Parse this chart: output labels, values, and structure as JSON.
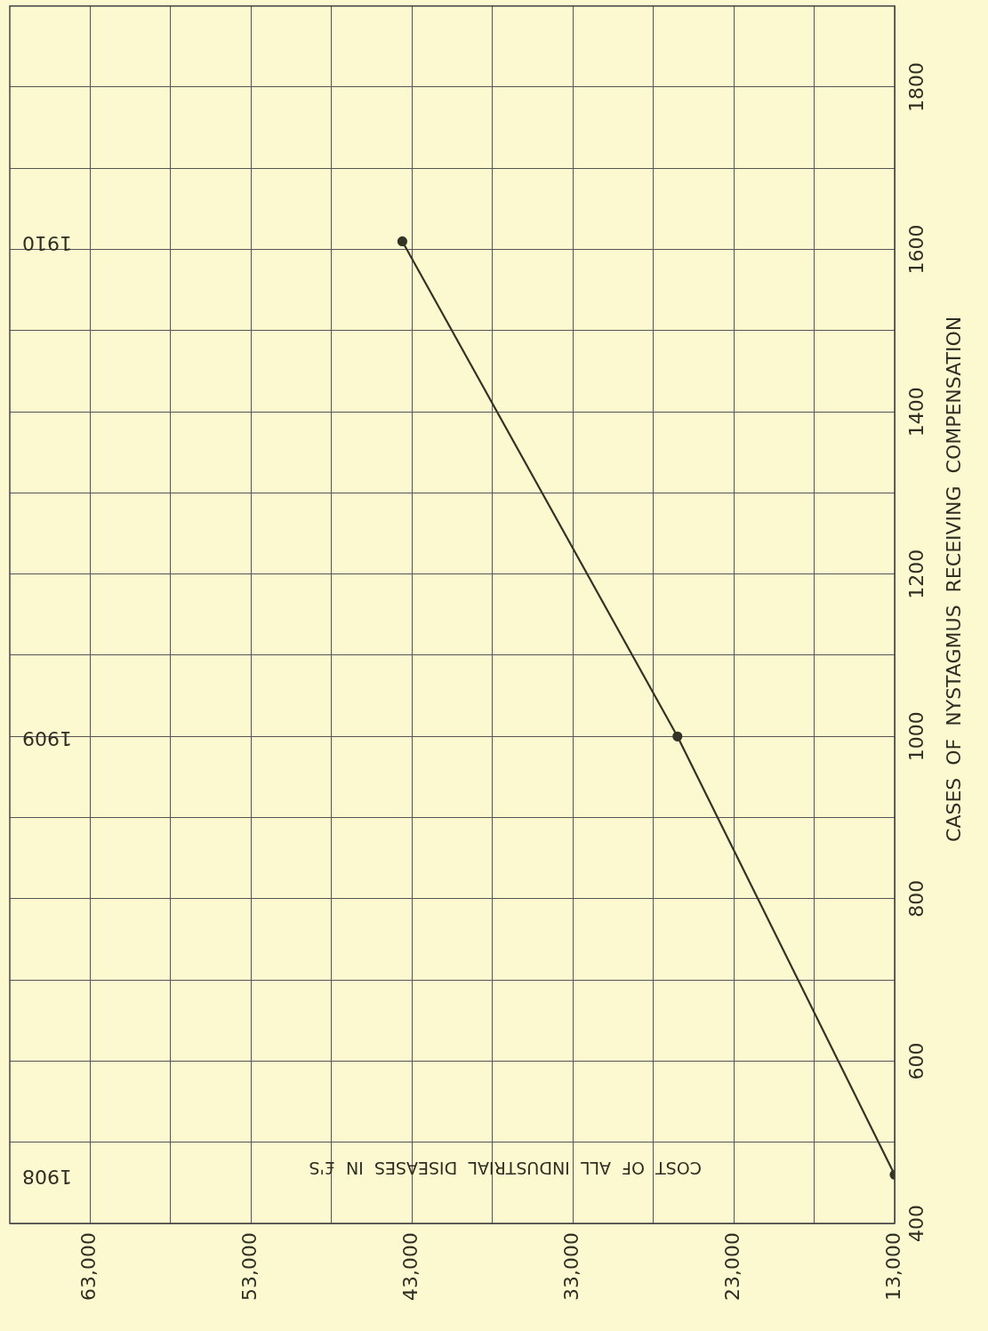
{
  "chart_data": {
    "type": "line",
    "xlabel": "COST OF ALL INDUSTRIAL DISEASES IN £'S",
    "ylabel": "CASES OF NYSTAGMUS RECEIVING COMPENSATION",
    "x": [
      13000,
      26500,
      43600
    ],
    "series": [
      {
        "color": "#333326",
        "values": [
          460,
          1000,
          1610
        ]
      }
    ],
    "xlim": [
      68000,
      13000
    ],
    "xticks": [
      {
        "value": 63000,
        "label": "63,000"
      },
      {
        "value": 58000,
        "label": null
      },
      {
        "value": 53000,
        "label": "53,000"
      },
      {
        "value": 48000,
        "label": null
      },
      {
        "value": 43000,
        "label": "43,000"
      },
      {
        "value": 38000,
        "label": null
      },
      {
        "value": 33000,
        "label": "33,000"
      },
      {
        "value": 28000,
        "label": null
      },
      {
        "value": 23000,
        "label": "23,000"
      },
      {
        "value": 18000,
        "label": null
      },
      {
        "value": 13000,
        "label": "13,000"
      }
    ],
    "ylim": [
      400,
      1900
    ],
    "yticks": [
      400,
      {
        "value": 500,
        "label": null
      },
      600,
      {
        "value": 700,
        "label": null
      },
      800,
      {
        "value": 900,
        "label": null
      },
      1000,
      {
        "value": 1100,
        "label": null
      },
      1200,
      {
        "value": 1300,
        "label": null
      },
      1400,
      {
        "value": 1500,
        "label": null
      },
      1600,
      {
        "value": 1700,
        "label": null
      },
      1800
    ],
    "grid": true,
    "legend": false,
    "marker": "circle",
    "line_style": "solid",
    "annotations": [
      "1908",
      "1909",
      "1910"
    ]
  }
}
